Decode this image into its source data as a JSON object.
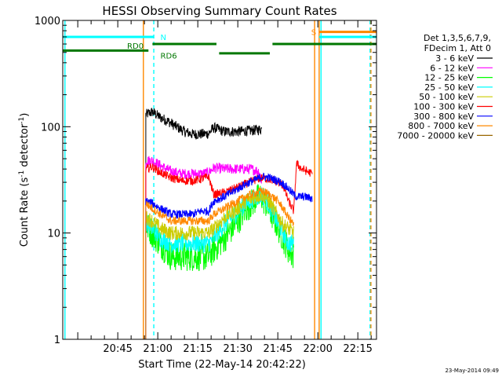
{
  "chart_data": {
    "type": "line",
    "title": "HESSI Observing Summary Count Rates",
    "xlabel": "Start Time (22-May-14 20:42:22)",
    "ylabel_main": "Count Rate (s",
    "ylabel_sup1": "-1",
    "ylabel_mid": " detector",
    "ylabel_sup2": "-1",
    "ylabel_end": ")",
    "y_scale": "log",
    "ylim": [
      1,
      1000
    ],
    "xlim_minutes": [
      -20.63,
      97
    ],
    "x_ticks": [
      {
        "m": 0,
        "label": "20:45"
      },
      {
        "m": 15,
        "label": "21:00"
      },
      {
        "m": 30,
        "label": "21:15"
      },
      {
        "m": 45,
        "label": "21:30"
      },
      {
        "m": 60,
        "label": "21:45"
      },
      {
        "m": 75,
        "label": "22:00"
      },
      {
        "m": 90,
        "label": "22:15"
      }
    ],
    "y_ticks": [
      {
        "v": 1,
        "label": "1"
      },
      {
        "v": 10,
        "label": "10"
      },
      {
        "v": 100,
        "label": "100"
      },
      {
        "v": 1000,
        "label": "1000"
      }
    ],
    "legend_header": [
      "Det 1,3,5,6,7,9,",
      "FDecim 1, Att 0"
    ],
    "legend_position": "right",
    "series": [
      {
        "name": "3 - 6 keV",
        "color": "#000000",
        "points": [
          [
            10.5,
            130
          ],
          [
            13,
            138
          ],
          [
            16,
            122
          ],
          [
            19,
            112
          ],
          [
            22,
            100
          ],
          [
            25,
            90
          ],
          [
            28,
            85
          ],
          [
            31,
            85
          ],
          [
            34,
            86
          ],
          [
            36,
            98
          ],
          [
            40,
            90
          ],
          [
            45,
            90
          ],
          [
            50,
            92
          ],
          [
            53,
            94
          ],
          [
            54,
            95
          ]
        ],
        "noise": 0.05
      },
      {
        "name": "6 - 12 keV",
        "color": "#ff00ff",
        "points": [
          [
            10.5,
            48
          ],
          [
            13,
            48
          ],
          [
            16,
            43
          ],
          [
            20,
            38
          ],
          [
            24,
            36
          ],
          [
            28,
            36
          ],
          [
            31,
            36
          ],
          [
            34,
            37
          ],
          [
            36,
            41
          ],
          [
            40,
            40
          ],
          [
            45,
            40
          ],
          [
            50,
            40
          ],
          [
            53,
            38
          ],
          [
            54,
            30
          ]
        ],
        "noise": 0.05
      },
      {
        "name": "12 - 25 keV",
        "color": "#00ff00",
        "points": [
          [
            10.5,
            12
          ],
          [
            13,
            10
          ],
          [
            16,
            8
          ],
          [
            20,
            6
          ],
          [
            24,
            6
          ],
          [
            28,
            6
          ],
          [
            31,
            6
          ],
          [
            34,
            6
          ],
          [
            36,
            7
          ],
          [
            40,
            9
          ],
          [
            45,
            13
          ],
          [
            48,
            17
          ],
          [
            52,
            21
          ],
          [
            54,
            22
          ],
          [
            56,
            18
          ],
          [
            59,
            13
          ],
          [
            62,
            9
          ],
          [
            64,
            7
          ],
          [
            66,
            6
          ]
        ],
        "noise": 0.14
      },
      {
        "name": "25 - 50 keV",
        "color": "#00ffff",
        "points": [
          [
            10.5,
            13
          ],
          [
            13,
            11
          ],
          [
            16,
            9
          ],
          [
            20,
            8
          ],
          [
            24,
            8
          ],
          [
            28,
            8
          ],
          [
            31,
            8
          ],
          [
            34,
            8
          ],
          [
            36,
            9
          ],
          [
            40,
            12
          ],
          [
            45,
            16
          ],
          [
            48,
            19
          ],
          [
            52,
            22
          ],
          [
            54,
            23
          ],
          [
            56,
            20
          ],
          [
            59,
            14
          ],
          [
            62,
            10
          ],
          [
            64,
            8
          ],
          [
            66,
            8
          ]
        ],
        "noise": 0.09
      },
      {
        "name": "50 - 100 keV",
        "color": "#cccc00",
        "points": [
          [
            10.5,
            14
          ],
          [
            13,
            13
          ],
          [
            16,
            11
          ],
          [
            20,
            10
          ],
          [
            24,
            10
          ],
          [
            28,
            10
          ],
          [
            31,
            10
          ],
          [
            34,
            10
          ],
          [
            36,
            11
          ],
          [
            40,
            14
          ],
          [
            45,
            17
          ],
          [
            48,
            20
          ],
          [
            52,
            22
          ],
          [
            54,
            23
          ],
          [
            56,
            21
          ],
          [
            59,
            16
          ],
          [
            62,
            12
          ],
          [
            64,
            11
          ],
          [
            66,
            10
          ]
        ],
        "noise": 0.07
      },
      {
        "name": "100 - 300 keV",
        "color": "#ff0000",
        "points": [
          [
            10.5,
            40
          ],
          [
            13,
            42
          ],
          [
            16,
            37
          ],
          [
            20,
            33
          ],
          [
            24,
            31
          ],
          [
            28,
            31
          ],
          [
            31,
            32
          ],
          [
            34,
            34
          ],
          [
            36,
            23
          ],
          [
            40,
            24
          ],
          [
            45,
            27
          ],
          [
            48,
            29
          ],
          [
            52,
            32
          ],
          [
            54,
            33
          ],
          [
            57,
            32
          ],
          [
            60,
            30
          ],
          [
            62,
            28
          ],
          [
            64,
            20
          ],
          [
            66,
            16
          ],
          [
            67,
            45
          ],
          [
            69,
            40
          ],
          [
            71,
            38
          ],
          [
            73,
            36
          ]
        ],
        "noise": 0.04
      },
      {
        "name": "300 - 800 keV",
        "color": "#0000ff",
        "points": [
          [
            10.5,
            20
          ],
          [
            13,
            19
          ],
          [
            16,
            17
          ],
          [
            20,
            15
          ],
          [
            24,
            15
          ],
          [
            28,
            15
          ],
          [
            31,
            16
          ],
          [
            34,
            16
          ],
          [
            36,
            20
          ],
          [
            40,
            22
          ],
          [
            45,
            26
          ],
          [
            48,
            29
          ],
          [
            52,
            32
          ],
          [
            54,
            34
          ],
          [
            57,
            33
          ],
          [
            60,
            31
          ],
          [
            62,
            29
          ],
          [
            64,
            26
          ],
          [
            66,
            23
          ],
          [
            67,
            22
          ],
          [
            70,
            22
          ],
          [
            73,
            21
          ]
        ],
        "noise": 0.04
      },
      {
        "name": "800 - 7000 keV",
        "color": "#ff8800",
        "points": [
          [
            10.5,
            19
          ],
          [
            13,
            17
          ],
          [
            16,
            15
          ],
          [
            20,
            13
          ],
          [
            24,
            13
          ],
          [
            28,
            13
          ],
          [
            31,
            13
          ],
          [
            34,
            13
          ],
          [
            36,
            15
          ],
          [
            40,
            17
          ],
          [
            45,
            20
          ],
          [
            48,
            22
          ],
          [
            52,
            24
          ],
          [
            54,
            25
          ],
          [
            57,
            23
          ],
          [
            60,
            20
          ],
          [
            62,
            17
          ],
          [
            64,
            14
          ],
          [
            66,
            12
          ]
        ],
        "noise": 0.04
      },
      {
        "name": "7000 - 20000 keV",
        "color": "#996600",
        "points": [],
        "noise": 0
      }
    ],
    "state_bars": [
      {
        "color": "#00ffff",
        "y_value": 700,
        "segments": [
          [
            -20.63,
            13.5
          ],
          [
            75.5,
            97
          ]
        ]
      },
      {
        "color": "#ff8800",
        "y_value": 780,
        "segments": [
          [
            75.5,
            97
          ]
        ]
      },
      {
        "color": "#007700",
        "y_value": 520,
        "segments": [
          [
            -20.63,
            11.5
          ]
        ]
      },
      {
        "color": "#007700",
        "y_value": 600,
        "segments": [
          [
            13,
            37
          ],
          [
            58,
            97
          ]
        ]
      },
      {
        "color": "#007700",
        "y_value": 490,
        "segments": [
          [
            38,
            57
          ]
        ]
      }
    ],
    "bar_labels": [
      {
        "text": "N",
        "color": "#00ffff",
        "m": 16,
        "y_value": 700
      },
      {
        "text": "RD0",
        "color": "#007700",
        "m": 3.5,
        "y_value": 580
      },
      {
        "text": "RD6",
        "color": "#007700",
        "m": 16,
        "y_value": 470
      },
      {
        "text": "S",
        "color": "#ff8800",
        "m": 72.5,
        "y_value": 780
      }
    ],
    "vertical_lines": [
      {
        "m": -19.8,
        "color": "#00ffff",
        "dash": false
      },
      {
        "m": 9.6,
        "color": "#ff8800",
        "dash": false
      },
      {
        "m": 13.5,
        "color": "#00ffff",
        "dash": true
      },
      {
        "m": 73.8,
        "color": "#ff8800",
        "dash": false
      },
      {
        "m": 75.5,
        "color": "#ff8800",
        "dash": false
      },
      {
        "m": 76.2,
        "color": "#00ffff",
        "dash": false
      },
      {
        "m": 94.6,
        "color": "#00ffff",
        "dash": true
      },
      {
        "m": 94.9,
        "color": "#ff8800",
        "dash": true
      }
    ]
  },
  "timestamp": "23-May-2014 09:49"
}
